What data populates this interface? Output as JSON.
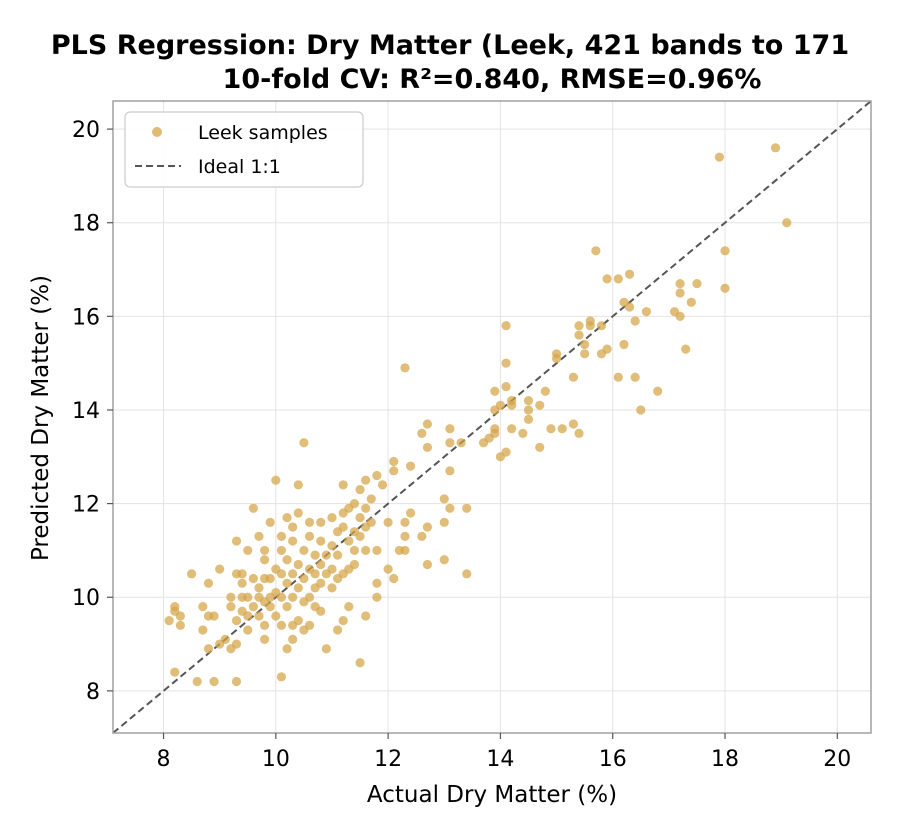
{
  "chart_data": {
    "type": "scatter",
    "title_line1": "PLS Regression: Dry Matter (Leek, 421 bands to 171",
    "title_line2": "10-fold CV: R²=0.840, RMSE=0.96%",
    "xlabel": "Actual Dry Matter (%)",
    "ylabel": "Predicted Dry Matter (%)",
    "xlim": [
      7.1,
      20.6
    ],
    "ylim": [
      7.1,
      20.6
    ],
    "xticks": [
      8,
      10,
      12,
      14,
      16,
      18,
      20
    ],
    "yticks": [
      8,
      10,
      12,
      14,
      16,
      18,
      20
    ],
    "grid": true,
    "legend_position": "top-left",
    "series": [
      {
        "name": "Leek samples",
        "color": "#d4a445",
        "points": [
          [
            8.1,
            9.5
          ],
          [
            8.2,
            9.8
          ],
          [
            8.2,
            9.7
          ],
          [
            8.3,
            9.4
          ],
          [
            8.3,
            9.6
          ],
          [
            8.2,
            8.4
          ],
          [
            8.5,
            10.5
          ],
          [
            8.6,
            8.2
          ],
          [
            8.7,
            9.3
          ],
          [
            8.7,
            9.8
          ],
          [
            8.8,
            10.3
          ],
          [
            8.8,
            9.6
          ],
          [
            8.8,
            8.9
          ],
          [
            8.9,
            9.6
          ],
          [
            9.0,
            10.6
          ],
          [
            8.9,
            8.2
          ],
          [
            9.0,
            9.0
          ],
          [
            9.1,
            9.1
          ],
          [
            9.2,
            8.9
          ],
          [
            9.2,
            9.8
          ],
          [
            9.2,
            10.0
          ],
          [
            9.3,
            10.5
          ],
          [
            9.3,
            11.2
          ],
          [
            9.3,
            8.2
          ],
          [
            9.3,
            9.5
          ],
          [
            9.3,
            9.0
          ],
          [
            9.4,
            10.5
          ],
          [
            9.4,
            9.7
          ],
          [
            9.4,
            10.0
          ],
          [
            9.4,
            10.3
          ],
          [
            9.5,
            11.0
          ],
          [
            9.5,
            9.6
          ],
          [
            9.5,
            9.3
          ],
          [
            9.5,
            10.0
          ],
          [
            9.6,
            9.8
          ],
          [
            9.6,
            10.4
          ],
          [
            9.6,
            11.9
          ],
          [
            9.7,
            9.6
          ],
          [
            9.7,
            11.3
          ],
          [
            9.7,
            10.2
          ],
          [
            9.7,
            10.0
          ],
          [
            9.8,
            9.4
          ],
          [
            9.8,
            10.8
          ],
          [
            9.8,
            11.0
          ],
          [
            9.8,
            9.9
          ],
          [
            9.8,
            10.4
          ],
          [
            9.8,
            9.1
          ],
          [
            9.9,
            10.0
          ],
          [
            9.9,
            9.8
          ],
          [
            9.9,
            11.6
          ],
          [
            9.9,
            10.4
          ],
          [
            10.0,
            12.5
          ],
          [
            10.0,
            10.1
          ],
          [
            10.0,
            9.6
          ],
          [
            10.0,
            10.6
          ],
          [
            10.1,
            11.3
          ],
          [
            10.1,
            11.0
          ],
          [
            10.1,
            10.5
          ],
          [
            10.1,
            10.0
          ],
          [
            10.1,
            9.4
          ],
          [
            10.1,
            8.3
          ],
          [
            10.2,
            11.7
          ],
          [
            10.2,
            10.8
          ],
          [
            10.2,
            10.3
          ],
          [
            10.2,
            9.8
          ],
          [
            10.2,
            8.9
          ],
          [
            10.3,
            11.5
          ],
          [
            10.3,
            11.2
          ],
          [
            10.3,
            10.5
          ],
          [
            10.3,
            10.0
          ],
          [
            10.3,
            9.4
          ],
          [
            10.3,
            9.1
          ],
          [
            10.4,
            12.4
          ],
          [
            10.4,
            11.8
          ],
          [
            10.4,
            10.7
          ],
          [
            10.4,
            10.2
          ],
          [
            10.4,
            9.5
          ],
          [
            10.5,
            13.3
          ],
          [
            10.5,
            11.0
          ],
          [
            10.5,
            10.4
          ],
          [
            10.5,
            9.9
          ],
          [
            10.5,
            9.3
          ],
          [
            10.6,
            11.6
          ],
          [
            10.6,
            11.3
          ],
          [
            10.6,
            10.6
          ],
          [
            10.6,
            10.0
          ],
          [
            10.6,
            9.4
          ],
          [
            10.7,
            10.9
          ],
          [
            10.7,
            10.5
          ],
          [
            10.7,
            10.2
          ],
          [
            10.7,
            9.8
          ],
          [
            10.8,
            11.6
          ],
          [
            10.8,
            11.2
          ],
          [
            10.8,
            10.7
          ],
          [
            10.8,
            10.3
          ],
          [
            10.8,
            9.7
          ],
          [
            10.9,
            10.9
          ],
          [
            10.9,
            10.5
          ],
          [
            10.9,
            8.9
          ],
          [
            11.0,
            11.7
          ],
          [
            11.0,
            11.1
          ],
          [
            11.0,
            10.6
          ],
          [
            11.0,
            10.2
          ],
          [
            11.1,
            11.4
          ],
          [
            11.1,
            10.9
          ],
          [
            11.1,
            10.4
          ],
          [
            11.1,
            9.3
          ],
          [
            11.2,
            12.4
          ],
          [
            11.2,
            11.8
          ],
          [
            11.2,
            11.5
          ],
          [
            11.2,
            10.5
          ],
          [
            11.2,
            9.5
          ],
          [
            11.3,
            11.9
          ],
          [
            11.3,
            11.2
          ],
          [
            11.3,
            10.6
          ],
          [
            11.3,
            9.8
          ],
          [
            11.4,
            12.0
          ],
          [
            11.4,
            11.4
          ],
          [
            11.4,
            11.0
          ],
          [
            11.4,
            10.7
          ],
          [
            11.5,
            12.3
          ],
          [
            11.5,
            11.7
          ],
          [
            11.5,
            11.3
          ],
          [
            11.5,
            8.6
          ],
          [
            11.6,
            12.5
          ],
          [
            11.6,
            11.9
          ],
          [
            11.6,
            11.5
          ],
          [
            11.6,
            11.0
          ],
          [
            11.6,
            9.6
          ],
          [
            11.7,
            12.1
          ],
          [
            11.7,
            11.6
          ],
          [
            11.8,
            12.6
          ],
          [
            11.8,
            11.0
          ],
          [
            11.8,
            10.0
          ],
          [
            11.8,
            10.3
          ],
          [
            11.9,
            12.4
          ],
          [
            12.0,
            10.6
          ],
          [
            12.0,
            11.6
          ],
          [
            12.1,
            12.7
          ],
          [
            12.1,
            12.9
          ],
          [
            12.1,
            10.4
          ],
          [
            12.2,
            11.0
          ],
          [
            12.3,
            14.9
          ],
          [
            12.3,
            11.6
          ],
          [
            12.3,
            11.3
          ],
          [
            12.3,
            11.0
          ],
          [
            12.4,
            12.8
          ],
          [
            12.4,
            11.8
          ],
          [
            12.6,
            11.3
          ],
          [
            12.6,
            13.5
          ],
          [
            12.7,
            13.2
          ],
          [
            12.7,
            13.7
          ],
          [
            12.7,
            11.5
          ],
          [
            12.7,
            10.7
          ],
          [
            13.0,
            12.1
          ],
          [
            13.0,
            11.6
          ],
          [
            13.0,
            10.8
          ],
          [
            13.1,
            13.6
          ],
          [
            13.1,
            12.7
          ],
          [
            13.1,
            11.9
          ],
          [
            13.1,
            13.3
          ],
          [
            13.3,
            13.3
          ],
          [
            13.4,
            11.9
          ],
          [
            13.4,
            10.5
          ],
          [
            13.7,
            13.3
          ],
          [
            13.8,
            13.4
          ],
          [
            13.9,
            14.4
          ],
          [
            13.9,
            14.0
          ],
          [
            13.9,
            13.6
          ],
          [
            13.9,
            13.5
          ],
          [
            14.0,
            14.1
          ],
          [
            14.0,
            13.0
          ],
          [
            14.1,
            15.8
          ],
          [
            14.1,
            15.0
          ],
          [
            14.1,
            14.5
          ],
          [
            14.1,
            13.1
          ],
          [
            14.2,
            14.1
          ],
          [
            14.2,
            13.6
          ],
          [
            14.2,
            14.2
          ],
          [
            14.4,
            13.5
          ],
          [
            14.5,
            14.0
          ],
          [
            14.5,
            13.8
          ],
          [
            14.5,
            14.2
          ],
          [
            14.7,
            14.1
          ],
          [
            14.7,
            13.2
          ],
          [
            14.8,
            14.4
          ],
          [
            14.9,
            13.6
          ],
          [
            15.0,
            15.2
          ],
          [
            15.0,
            15.1
          ],
          [
            15.1,
            13.6
          ],
          [
            15.3,
            13.7
          ],
          [
            15.3,
            14.7
          ],
          [
            15.4,
            15.8
          ],
          [
            15.4,
            15.6
          ],
          [
            15.4,
            13.5
          ],
          [
            15.5,
            15.2
          ],
          [
            15.5,
            15.4
          ],
          [
            15.6,
            15.9
          ],
          [
            15.6,
            15.8
          ],
          [
            15.7,
            17.4
          ],
          [
            15.8,
            15.2
          ],
          [
            15.8,
            15.8
          ],
          [
            15.9,
            16.8
          ],
          [
            15.9,
            15.3
          ],
          [
            16.1,
            14.7
          ],
          [
            16.1,
            16.8
          ],
          [
            16.2,
            16.3
          ],
          [
            16.2,
            15.4
          ],
          [
            16.3,
            16.9
          ],
          [
            16.3,
            16.2
          ],
          [
            16.4,
            15.9
          ],
          [
            16.4,
            14.7
          ],
          [
            16.5,
            14.0
          ],
          [
            16.6,
            16.1
          ],
          [
            16.8,
            14.4
          ],
          [
            17.1,
            16.1
          ],
          [
            17.2,
            16.7
          ],
          [
            17.2,
            16.5
          ],
          [
            17.2,
            16.0
          ],
          [
            17.3,
            15.3
          ],
          [
            17.4,
            16.3
          ],
          [
            17.5,
            16.7
          ],
          [
            17.9,
            19.4
          ],
          [
            18.0,
            17.4
          ],
          [
            18.0,
            16.6
          ],
          [
            18.9,
            19.6
          ],
          [
            19.1,
            18.0
          ]
        ]
      }
    ],
    "reference_line": {
      "name": "Ideal 1:1",
      "color": "#555555",
      "style": "dashed"
    }
  }
}
